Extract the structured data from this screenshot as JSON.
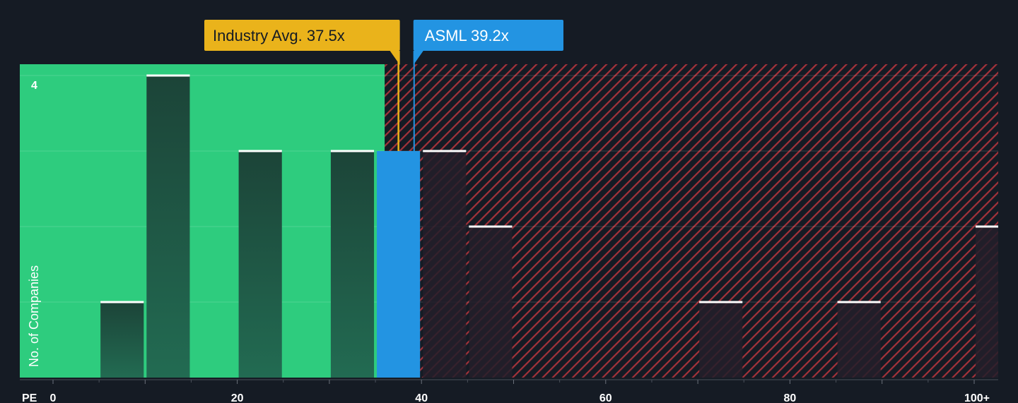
{
  "chart_data": {
    "type": "bar",
    "x_axis_label": "PE",
    "ylabel": "No. of Companies",
    "x_ticks": [
      "0",
      "20",
      "40",
      "60",
      "80",
      "100+"
    ],
    "y_ticks": [
      "4"
    ],
    "xlim": [
      0,
      102
    ],
    "ylim": [
      0,
      4.13
    ],
    "bin_width": 5,
    "bins": [
      {
        "x_start": 5,
        "value": 1
      },
      {
        "x_start": 10,
        "value": 4
      },
      {
        "x_start": 20,
        "value": 3
      },
      {
        "x_start": 30,
        "value": 3
      },
      {
        "x_start": 35,
        "value": 3,
        "highlight": true
      },
      {
        "x_start": 40,
        "value": 3
      },
      {
        "x_start": 45,
        "value": 2
      },
      {
        "x_start": 70,
        "value": 1
      },
      {
        "x_start": 85,
        "value": 1
      },
      {
        "x_start": 100,
        "value": 2
      }
    ],
    "fair_zone_end": 36,
    "industry_avg": {
      "label": "Industry Avg. 37.5x",
      "value": 37.5
    },
    "company": {
      "label": "ASML 39.2x",
      "value": 39.2
    },
    "colors": {
      "background": "#151b24",
      "fair_zone": "#2ecc7e",
      "bar_in_fair": "#1e4b3e",
      "bar_in_hatch": "#231f2a",
      "highlight_bar": "#2394e2",
      "hatch_stripe": "#b3343c",
      "industry_avg": "#eab31b",
      "company": "#2394e2",
      "bar_cap": "#ffffff"
    }
  }
}
